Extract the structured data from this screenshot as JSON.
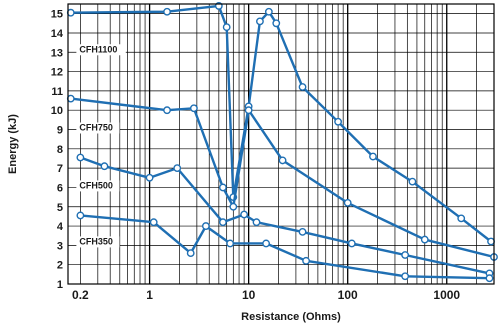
{
  "chart_data": {
    "type": "line",
    "title": "",
    "xlabel": "Resistance (Ohms)",
    "ylabel": "Energy (kJ)",
    "x_scale": "log",
    "xlim": [
      0.15,
      3000
    ],
    "ylim": [
      1,
      15.5
    ],
    "x_ticks": [
      {
        "value": 0.2,
        "label": "0.2"
      },
      {
        "value": 1,
        "label": "1"
      },
      {
        "value": 10,
        "label": "10"
      },
      {
        "value": 100,
        "label": "100"
      },
      {
        "value": 1000,
        "label": "1000"
      }
    ],
    "y_ticks": [
      1,
      2,
      3,
      4,
      5,
      6,
      7,
      8,
      9,
      10,
      11,
      12,
      13,
      14,
      15
    ],
    "grid": true,
    "colors": {
      "series": "#1f6fb3",
      "grid": "#000000",
      "frame": "#000000"
    },
    "series": [
      {
        "name": "CFH1100",
        "points": [
          [
            0.16,
            15.05
          ],
          [
            1.5,
            15.1
          ],
          [
            5,
            15.4
          ],
          [
            6,
            14.3
          ],
          [
            7,
            5.5
          ],
          [
            10,
            10.2
          ],
          [
            13,
            14.6
          ],
          [
            16,
            15.1
          ],
          [
            19,
            14.5
          ],
          [
            35,
            11.2
          ],
          [
            80,
            9.4
          ],
          [
            180,
            7.6
          ],
          [
            450,
            6.3
          ],
          [
            1400,
            4.4
          ],
          [
            2800,
            3.2
          ]
        ]
      },
      {
        "name": "CFH750",
        "points": [
          [
            0.16,
            10.6
          ],
          [
            1.5,
            10.0
          ],
          [
            2.8,
            10.1
          ],
          [
            5.5,
            6.0
          ],
          [
            7,
            5.0
          ],
          [
            10,
            10.0
          ],
          [
            22,
            7.4
          ],
          [
            100,
            5.2
          ],
          [
            600,
            3.3
          ],
          [
            3000,
            2.4
          ]
        ]
      },
      {
        "name": "CFH500",
        "points": [
          [
            0.2,
            7.55
          ],
          [
            0.35,
            7.1
          ],
          [
            1,
            6.5
          ],
          [
            1.9,
            7.0
          ],
          [
            5.5,
            4.2
          ],
          [
            9,
            4.6
          ],
          [
            12,
            4.2
          ],
          [
            35,
            3.7
          ],
          [
            110,
            3.1
          ],
          [
            380,
            2.5
          ],
          [
            2700,
            1.55
          ]
        ]
      },
      {
        "name": "CFH350",
        "points": [
          [
            0.2,
            4.55
          ],
          [
            1.1,
            4.2
          ],
          [
            2.6,
            2.6
          ],
          [
            3.7,
            4.0
          ],
          [
            6.5,
            3.1
          ],
          [
            15,
            3.1
          ],
          [
            38,
            2.2
          ],
          [
            380,
            1.4
          ],
          [
            2700,
            1.3
          ]
        ]
      }
    ]
  }
}
